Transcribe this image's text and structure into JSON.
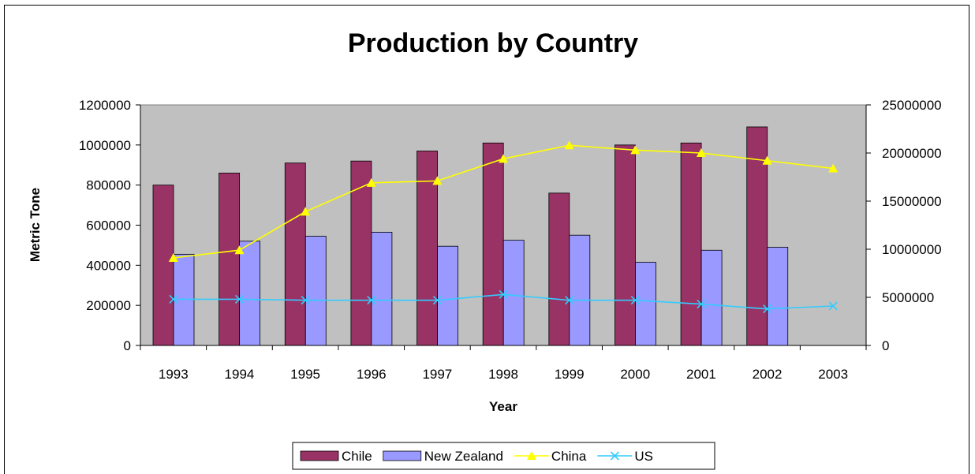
{
  "chart_data": {
    "type": "bar",
    "title": "Production by Country",
    "xlabel": "Year",
    "ylabel": "Metric Tone",
    "categories": [
      "1993",
      "1994",
      "1995",
      "1996",
      "1997",
      "1998",
      "1999",
      "2000",
      "2001",
      "2002",
      "2003"
    ],
    "ylim": [
      0,
      1200000
    ],
    "y2lim": [
      0,
      25000000
    ],
    "yticks": [
      "0",
      "200000",
      "400000",
      "600000",
      "800000",
      "1000000",
      "1200000"
    ],
    "y2ticks": [
      "0",
      "5000000",
      "10000000",
      "15000000",
      "20000000",
      "25000000"
    ],
    "grid": false,
    "plot_background": "#c0c0c0",
    "legend_position": "bottom",
    "series": [
      {
        "name": "Chile",
        "kind": "bar",
        "axis": "left",
        "color": "#993366",
        "values": [
          800000,
          860000,
          910000,
          920000,
          970000,
          1010000,
          760000,
          1000000,
          1010000,
          1090000,
          null
        ]
      },
      {
        "name": "New Zealand",
        "kind": "bar",
        "axis": "left",
        "color": "#9999ff",
        "values": [
          455000,
          520000,
          545000,
          565000,
          495000,
          525000,
          550000,
          415000,
          475000,
          490000,
          null
        ]
      },
      {
        "name": "China",
        "kind": "line",
        "axis": "right",
        "color": "#ffff00",
        "marker": "triangle",
        "values": [
          9100000,
          9900000,
          13900000,
          16900000,
          17100000,
          19400000,
          20800000,
          20300000,
          20000000,
          19200000,
          18400000
        ]
      },
      {
        "name": "US",
        "kind": "line",
        "axis": "right",
        "color": "#33ccff",
        "marker": "x",
        "values": [
          4800000,
          4800000,
          4700000,
          4700000,
          4700000,
          5300000,
          4700000,
          4700000,
          4300000,
          3800000,
          4100000
        ]
      }
    ]
  }
}
